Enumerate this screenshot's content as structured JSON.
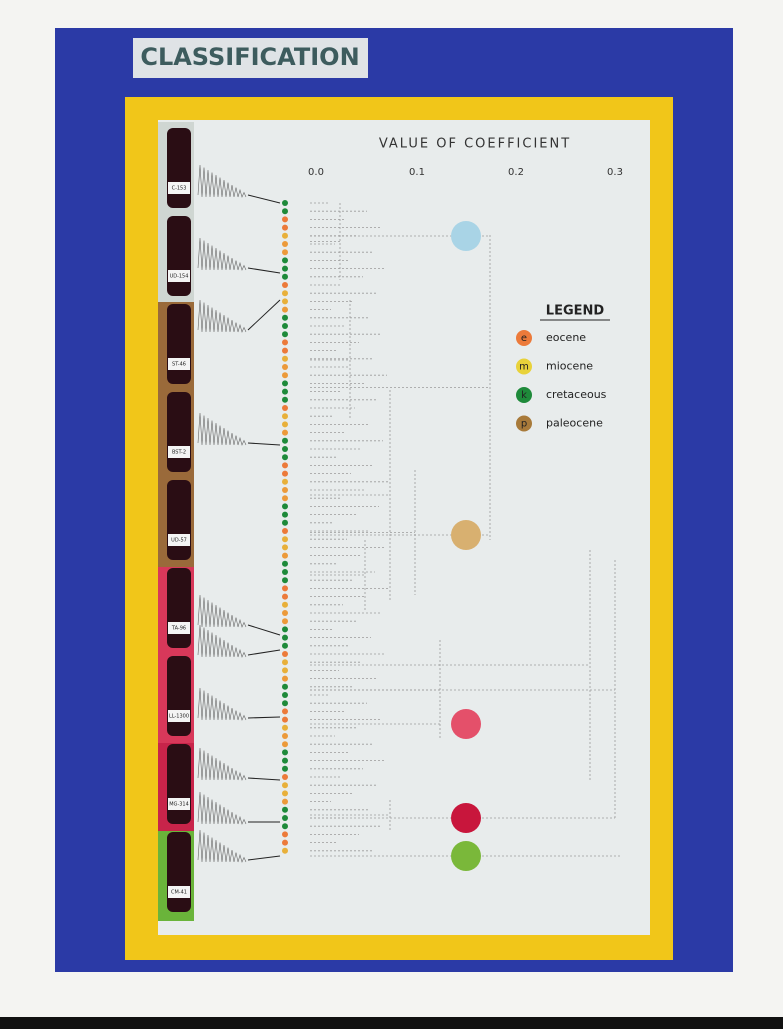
{
  "poster": {
    "title": "CLASSIFICATION",
    "axis": {
      "title": "VALUE OF COEFFICIENT",
      "ticks": [
        "0.0",
        "0.1",
        "0.2",
        "0.3"
      ]
    },
    "legend": {
      "title": "LEGEND",
      "items": [
        {
          "letter": "e",
          "label": "eocene"
        },
        {
          "letter": "m",
          "label": "miocene"
        },
        {
          "letter": "k",
          "label": "cretaceous"
        },
        {
          "letter": "p",
          "label": "paleocene"
        }
      ]
    },
    "samples": [
      "C-153",
      "UD-154",
      "ST-46",
      "BST-2",
      "UD-57",
      "TA-96",
      "LL-1300",
      "MG-314",
      "CM-41"
    ]
  }
}
